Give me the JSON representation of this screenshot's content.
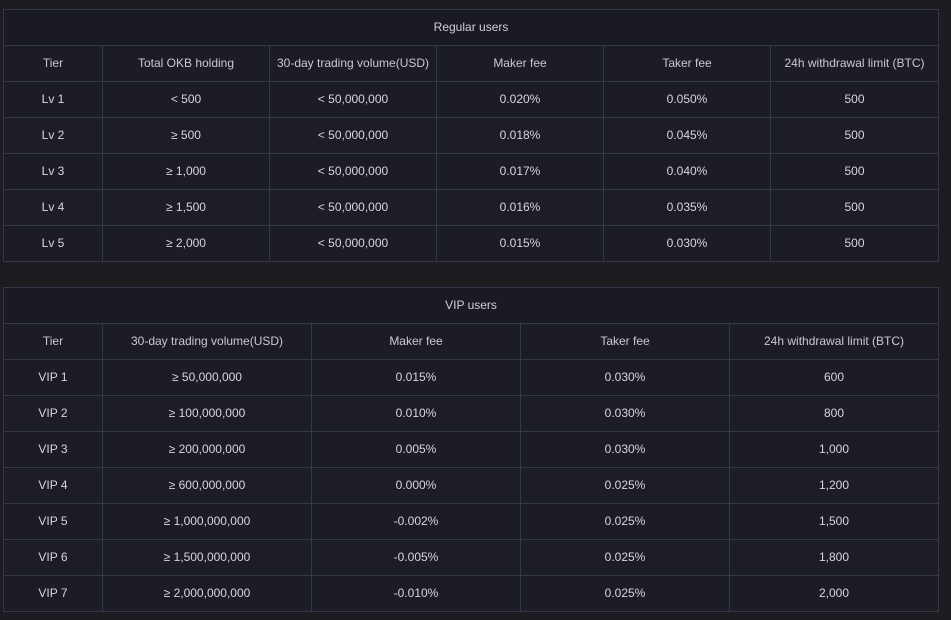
{
  "regular": {
    "title": "Regular users",
    "headers": [
      "Tier",
      "Total OKB holding",
      "30-day trading volume(USD)",
      "Maker fee",
      "Taker fee",
      "24h withdrawal limit (BTC)"
    ],
    "rows": [
      [
        "Lv 1",
        "< 500",
        "< 50,000,000",
        "0.020%",
        "0.050%",
        "500"
      ],
      [
        "Lv 2",
        "≥ 500",
        "< 50,000,000",
        "0.018%",
        "0.045%",
        "500"
      ],
      [
        "Lv 3",
        "≥ 1,000",
        "< 50,000,000",
        "0.017%",
        "0.040%",
        "500"
      ],
      [
        "Lv 4",
        "≥ 1,500",
        "< 50,000,000",
        "0.016%",
        "0.035%",
        "500"
      ],
      [
        "Lv 5",
        "≥ 2,000",
        "< 50,000,000",
        "0.015%",
        "0.030%",
        "500"
      ]
    ]
  },
  "vip": {
    "title": "VIP users",
    "headers": [
      "Tier",
      "30-day trading volume(USD)",
      "Maker fee",
      "Taker fee",
      "24h withdrawal limit (BTC)"
    ],
    "rows": [
      [
        "VIP 1",
        "≥ 50,000,000",
        "0.015%",
        "0.030%",
        "600"
      ],
      [
        "VIP 2",
        "≥ 100,000,000",
        "0.010%",
        "0.030%",
        "800"
      ],
      [
        "VIP 3",
        "≥ 200,000,000",
        "0.005%",
        "0.030%",
        "1,000"
      ],
      [
        "VIP 4",
        "≥ 600,000,000",
        "0.000%",
        "0.025%",
        "1,200"
      ],
      [
        "VIP 5",
        "≥ 1,000,000,000",
        "-0.002%",
        "0.025%",
        "1,500"
      ],
      [
        "VIP 6",
        "≥ 1,500,000,000",
        "-0.005%",
        "0.025%",
        "1,800"
      ],
      [
        "VIP 7",
        "≥ 2,000,000,000",
        "-0.010%",
        "0.025%",
        "2,000"
      ]
    ]
  }
}
